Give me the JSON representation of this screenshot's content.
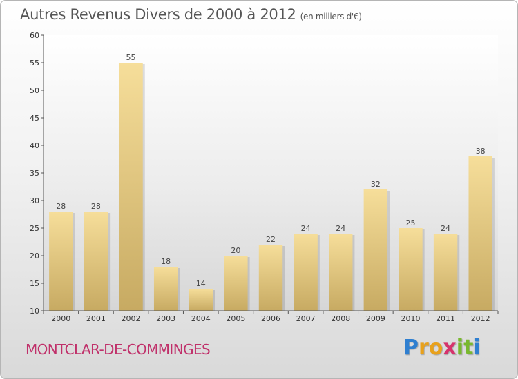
{
  "header": {
    "title": "Autres Revenus Divers de 2000 à 2012",
    "unit": "(en milliers d'€)"
  },
  "footer": {
    "commune": "MONTCLAR-DE-COMMINGES",
    "logo_letters": [
      "P",
      "r",
      "o",
      "x",
      "i",
      "t",
      "i"
    ],
    "logo_colors": [
      "#2f7fd0",
      "#e8a11c",
      "#e8a11c",
      "#d6336c",
      "#79b82e",
      "#79b82e",
      "#2f7fd0"
    ]
  },
  "chart_data": {
    "type": "bar",
    "title": "Autres Revenus Divers de 2000 à 2012",
    "categories": [
      "2000",
      "2001",
      "2002",
      "2003",
      "2004",
      "2005",
      "2006",
      "2007",
      "2008",
      "2009",
      "2010",
      "2011",
      "2012"
    ],
    "values": [
      28,
      28,
      55,
      18,
      14,
      20,
      22,
      24,
      24,
      32,
      25,
      24,
      38
    ],
    "ylim": [
      10,
      60
    ],
    "yticks": [
      10,
      15,
      20,
      25,
      30,
      35,
      40,
      45,
      50,
      55,
      60
    ],
    "grid": false,
    "bar_color_top": "#f6de9a",
    "bar_color_bottom": "#c7aa62"
  }
}
